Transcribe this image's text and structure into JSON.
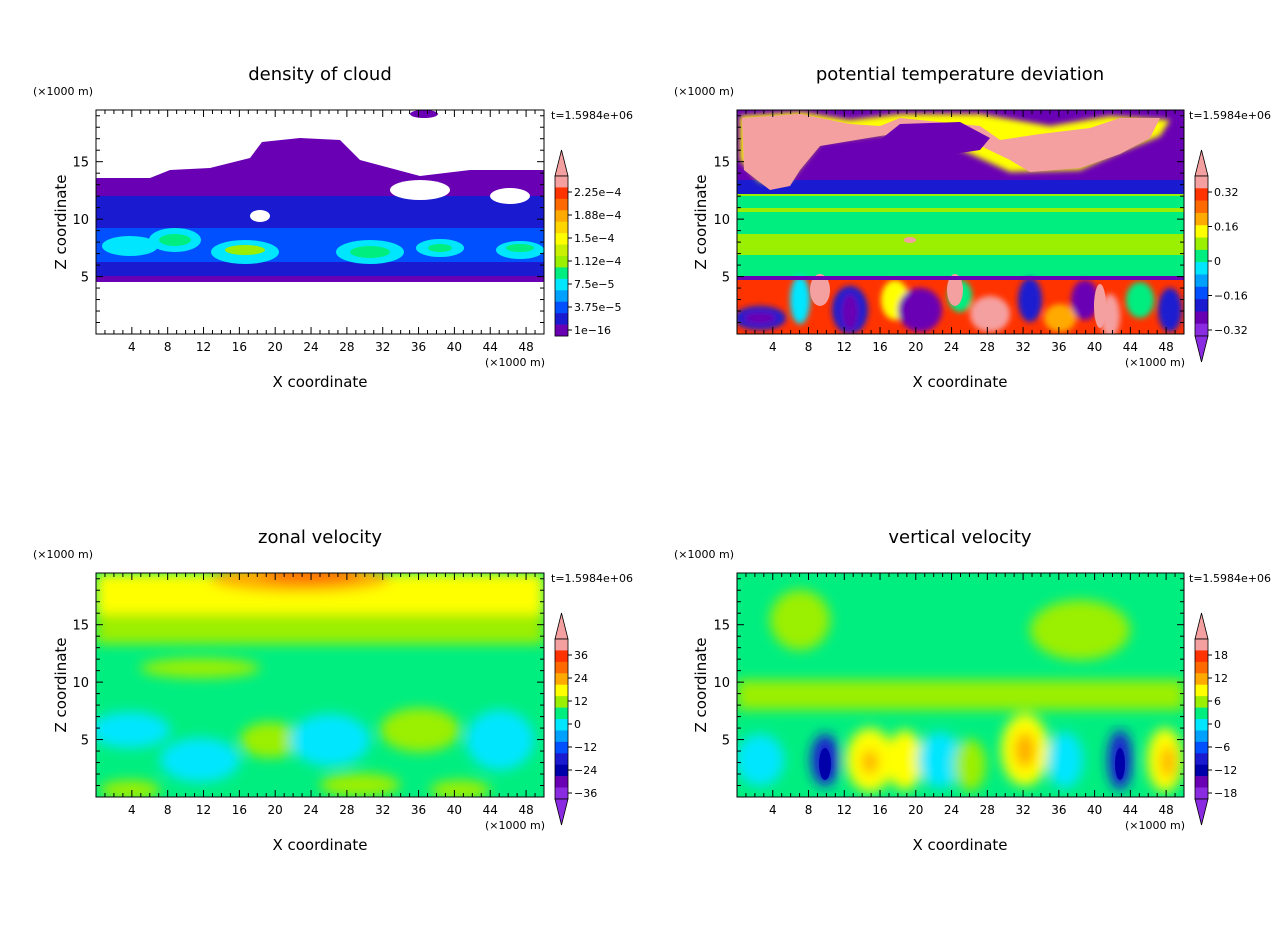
{
  "chart_data": [
    {
      "type": "heatmap",
      "title": "density of cloud",
      "xlabel": "X coordinate",
      "ylabel": "Z coordinate",
      "x_unit": "(×1000 m)",
      "y_unit": "(×1000 m)",
      "time_label": "t=1.5984e+06",
      "xlim": [
        0,
        50
      ],
      "ylim": [
        0,
        19.5
      ],
      "xticks": [
        "4",
        "8",
        "12",
        "16",
        "20",
        "24",
        "28",
        "32",
        "36",
        "40",
        "44",
        "48"
      ],
      "yticks": [
        "5",
        "10",
        "15"
      ],
      "colorbar": {
        "labels": [
          "2.25e-4",
          "1.88e-4",
          "1.5e-4",
          "1.12e-4",
          "7.5e-5",
          "3.75e-5",
          "1e-16"
        ],
        "arrow_low": false,
        "arrow_high": true
      }
    },
    {
      "type": "heatmap",
      "title": "potential temperature deviation",
      "xlabel": "X coordinate",
      "ylabel": "Z coordinate",
      "x_unit": "(×1000 m)",
      "y_unit": "(×1000 m)",
      "time_label": "t=1.5984e+06",
      "xlim": [
        0,
        50
      ],
      "ylim": [
        0,
        19.5
      ],
      "xticks": [
        "4",
        "8",
        "12",
        "16",
        "20",
        "24",
        "28",
        "32",
        "36",
        "40",
        "44",
        "48"
      ],
      "yticks": [
        "5",
        "10",
        "15"
      ],
      "colorbar": {
        "labels": [
          "0.32",
          "0.16",
          "0",
          "-0.16",
          "-0.32"
        ],
        "arrow_low": true,
        "arrow_high": true
      }
    },
    {
      "type": "heatmap",
      "title": "zonal velocity",
      "xlabel": "X coordinate",
      "ylabel": "Z coordinate",
      "x_unit": "(×1000 m)",
      "y_unit": "(×1000 m)",
      "time_label": "t=1.5984e+06",
      "xlim": [
        0,
        50
      ],
      "ylim": [
        0,
        19.5
      ],
      "xticks": [
        "4",
        "8",
        "12",
        "16",
        "20",
        "24",
        "28",
        "32",
        "36",
        "40",
        "44",
        "48"
      ],
      "yticks": [
        "5",
        "10",
        "15"
      ],
      "colorbar": {
        "labels": [
          "36",
          "24",
          "12",
          "0",
          "-12",
          "-24",
          "-36"
        ],
        "arrow_low": true,
        "arrow_high": true
      }
    },
    {
      "type": "heatmap",
      "title": "vertical velocity",
      "xlabel": "X coordinate",
      "ylabel": "Z coordinate",
      "x_unit": "(×1000 m)",
      "y_unit": "(×1000 m)",
      "time_label": "t=1.5984e+06",
      "xlim": [
        0,
        50
      ],
      "ylim": [
        0,
        19.5
      ],
      "xticks": [
        "4",
        "8",
        "12",
        "16",
        "20",
        "24",
        "28",
        "32",
        "36",
        "40",
        "44",
        "48"
      ],
      "yticks": [
        "5",
        "10",
        "15"
      ],
      "colorbar": {
        "labels": [
          "18",
          "12",
          "6",
          "0",
          "-6",
          "-12",
          "-18"
        ],
        "arrow_low": true,
        "arrow_high": true
      }
    }
  ],
  "colors": {
    "purple": "#6a00b4",
    "deep_blue": "#1a1ad0",
    "blue": "#0050ff",
    "cyan": "#00e6ff",
    "green": "#00ee80",
    "yellow_green": "#9bef00",
    "yellow": "#ffff00",
    "orange": "#ffaa00",
    "red": "#ff3300",
    "pink": "#f5a0a0"
  }
}
